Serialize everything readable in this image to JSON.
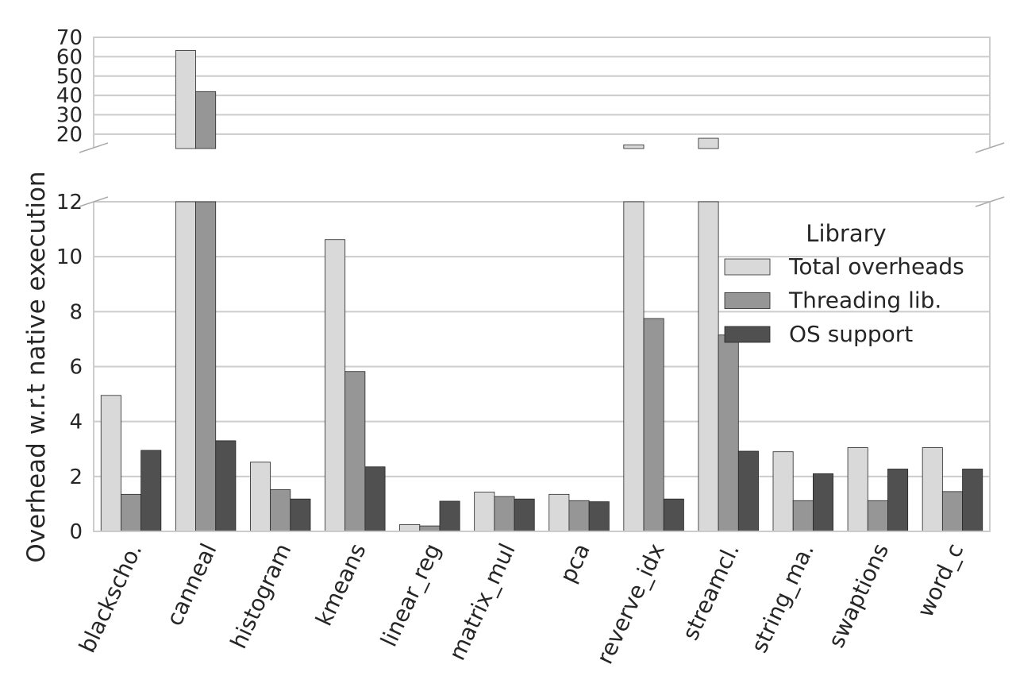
{
  "chart_data": {
    "type": "bar",
    "ylabel": "Overhead w.r.t native execution",
    "categories": [
      "blackscho.",
      "canneal",
      "histogram",
      "kmeans",
      "linear_reg",
      "matrix_mul",
      "pca",
      "reverve_idx",
      "streamcl.",
      "string_ma.",
      "swaptions",
      "word_c"
    ],
    "series": [
      {
        "name": "Total overheads",
        "color": "#d9d9d9",
        "values": [
          4.95,
          63.2,
          2.52,
          10.62,
          0.25,
          1.43,
          1.35,
          14.5,
          17.9,
          2.9,
          3.05,
          3.05
        ]
      },
      {
        "name": "Threading lib.",
        "color": "#969696",
        "values": [
          1.35,
          42.0,
          1.52,
          5.82,
          0.2,
          1.27,
          1.12,
          7.75,
          7.15,
          1.12,
          1.12,
          1.45
        ]
      },
      {
        "name": "OS support",
        "color": "#505050",
        "values": [
          2.95,
          3.3,
          1.18,
          2.35,
          1.1,
          1.18,
          1.08,
          1.18,
          2.92,
          2.1,
          2.27,
          2.27
        ]
      }
    ],
    "axes": {
      "lower": {
        "ylim": [
          0,
          12
        ],
        "ticks": [
          "0",
          "2",
          "4",
          "6",
          "8",
          "10",
          "12"
        ]
      },
      "upper": {
        "ylim": [
          13,
          70
        ],
        "ticks": [
          "20",
          "30",
          "40",
          "50",
          "60",
          "70"
        ]
      }
    },
    "broken_y_axis": true,
    "grid": true,
    "legend": {
      "title": "Library",
      "placement": "upper-right"
    }
  }
}
